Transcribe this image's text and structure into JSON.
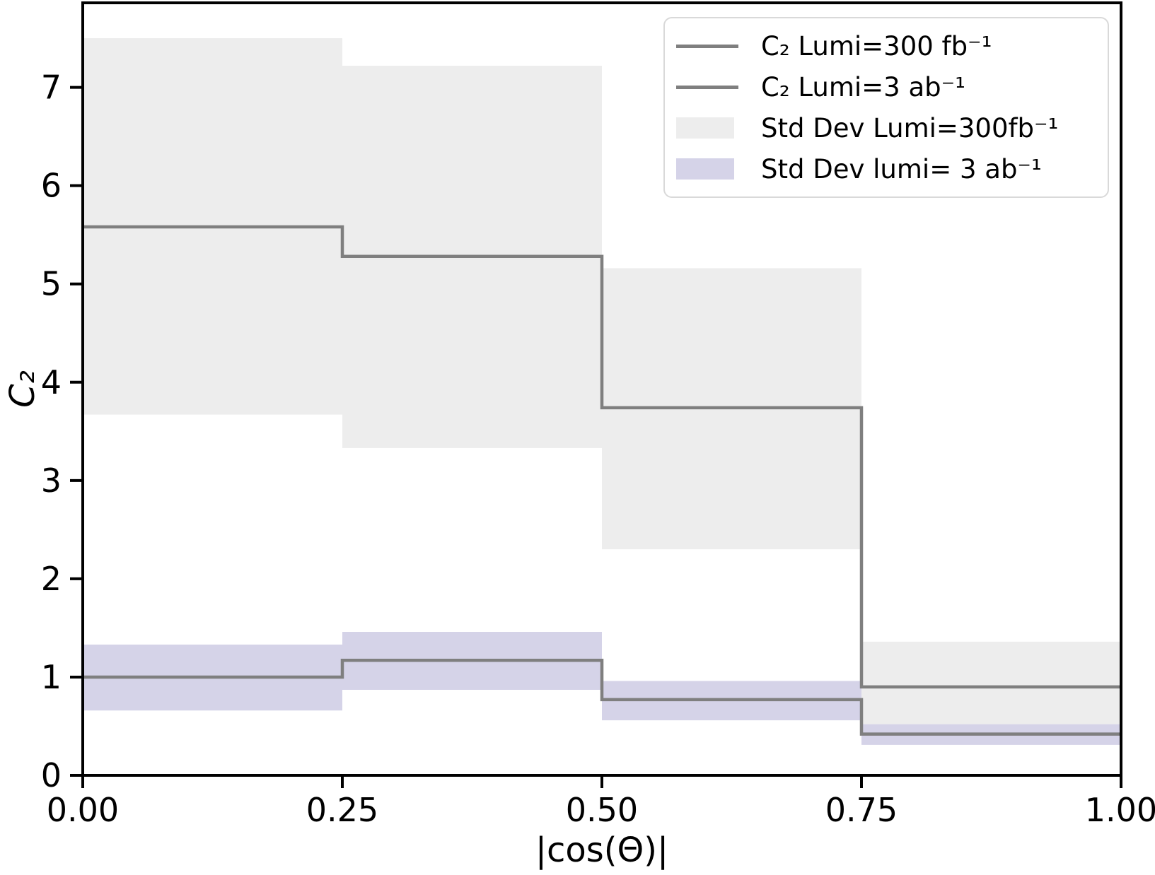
{
  "figure": {
    "background": "#ffffff",
    "frame_color": "#000000",
    "line_color": "#7f7f7f",
    "band300_color": "#ededed",
    "band3ab_color": "#d5d3e8",
    "legend_border_color": "#d9d9d9"
  },
  "chart_data": {
    "type": "bar",
    "subtype": "step-histogram",
    "title": "",
    "xlabel": "|cos(Θ)|",
    "ylabel": "C₂",
    "xlim": [
      0.0,
      1.0
    ],
    "ylim": [
      0.0,
      7.86
    ],
    "grid": false,
    "legend_position": "upper right",
    "bin_edges": [
      0.0,
      0.25,
      0.5,
      0.75,
      1.0
    ],
    "x_ticks": [
      {
        "value": 0.0,
        "label": "0.00"
      },
      {
        "value": 0.25,
        "label": "0.25"
      },
      {
        "value": 0.5,
        "label": "0.50"
      },
      {
        "value": 0.75,
        "label": "0.75"
      },
      {
        "value": 1.0,
        "label": "1.00"
      }
    ],
    "y_ticks": [
      {
        "value": 0,
        "label": "0"
      },
      {
        "value": 1,
        "label": "1"
      },
      {
        "value": 2,
        "label": "2"
      },
      {
        "value": 3,
        "label": "3"
      },
      {
        "value": 4,
        "label": "4"
      },
      {
        "value": 5,
        "label": "5"
      },
      {
        "value": 6,
        "label": "6"
      },
      {
        "value": 7,
        "label": "7"
      }
    ],
    "series": [
      {
        "name": "C₂ Lumi=300 fb⁻¹",
        "kind": "step-band",
        "color": "#ededed",
        "lower": [
          3.67,
          3.33,
          2.3,
          0.44
        ],
        "upper": [
          7.5,
          7.22,
          5.16,
          1.36
        ]
      },
      {
        "name": "Std Dev lumi= 3 ab⁻¹",
        "kind": "step-band",
        "color": "#d5d3e8",
        "lower": [
          0.66,
          0.87,
          0.56,
          0.31
        ],
        "upper": [
          1.33,
          1.46,
          0.96,
          0.52
        ]
      },
      {
        "name": "C₂ Lumi=300 fb⁻¹",
        "kind": "step-line",
        "color": "#7f7f7f",
        "width": 4.5,
        "values": [
          5.58,
          5.28,
          3.74,
          0.9
        ]
      },
      {
        "name": "C₂ Lumi=3 ab⁻¹",
        "kind": "step-line",
        "color": "#7f7f7f",
        "width": 4.5,
        "values": [
          1.0,
          1.17,
          0.77,
          0.42
        ]
      }
    ],
    "legend_entries": [
      {
        "swatch": "line",
        "color": "#7f7f7f",
        "label": "C₂ Lumi=300 fb⁻¹"
      },
      {
        "swatch": "line",
        "color": "#7f7f7f",
        "label": "C₂ Lumi=3 ab⁻¹"
      },
      {
        "swatch": "patch",
        "color": "#ededed",
        "label": "Std Dev Lumi=300fb⁻¹"
      },
      {
        "swatch": "patch",
        "color": "#d5d3e8",
        "label": "Std Dev lumi= 3 ab⁻¹"
      }
    ]
  }
}
